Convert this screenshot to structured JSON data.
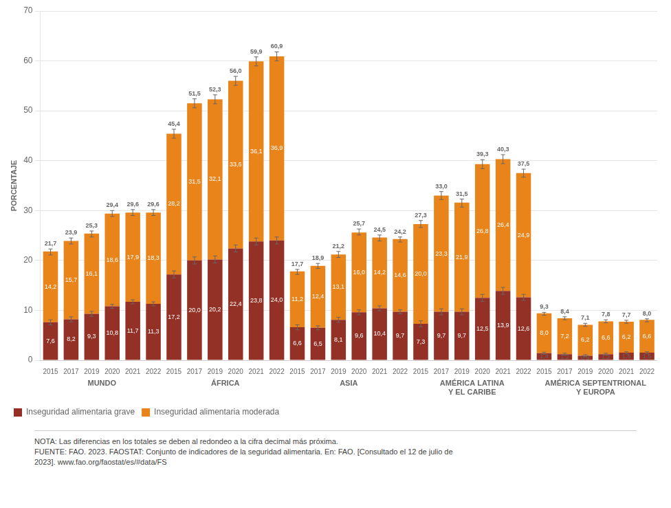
{
  "chart_data": {
    "type": "bar",
    "stacked": true,
    "categories": [
      "2015",
      "2017",
      "2019",
      "2020",
      "2021",
      "2022",
      "2015",
      "2017",
      "2019",
      "2020",
      "2021",
      "2022",
      "2015",
      "2017",
      "2019",
      "2020",
      "2021",
      "2022",
      "2015",
      "2017",
      "2019",
      "2020",
      "2021",
      "2022",
      "2015",
      "2017",
      "2019",
      "2020",
      "2021",
      "2022"
    ],
    "groups": [
      {
        "name": "MUNDO",
        "size": 6
      },
      {
        "name": "ÁFRICA",
        "size": 6
      },
      {
        "name": "ASIA",
        "size": 6
      },
      {
        "name": "AMÉRICA LATINA\nY EL CARIBE",
        "size": 6
      },
      {
        "name": "AMÉRICA SEPTENTRIONAL\nY EUROPA",
        "size": 6
      }
    ],
    "series": [
      {
        "name": "Inseguridad alimentaria grave",
        "color": "#943126",
        "values": [
          7.6,
          8.2,
          9.3,
          10.8,
          11.7,
          11.3,
          17.2,
          20.0,
          20.2,
          22.4,
          23.8,
          24.0,
          6.6,
          6.5,
          8.1,
          9.6,
          10.4,
          9.7,
          7.3,
          9.7,
          9.7,
          12.5,
          13.9,
          12.6,
          1.4,
          1.2,
          0.9,
          1.2,
          1.5,
          1.5
        ],
        "value_labels": [
          "7,6",
          "8,2",
          "9,3",
          "10,8",
          "11,7",
          "11,3",
          "17,2",
          "20,0",
          "20,2",
          "22,4",
          "23,8",
          "24,0",
          "6,6",
          "6,5",
          "8,1",
          "9,6",
          "10,4",
          "9,7",
          "7,3",
          "9,7",
          "9,7",
          "12,5",
          "13,9",
          "12,6",
          "1,4",
          "1,2",
          "0,9",
          "1,2",
          "1,5",
          "1,5"
        ],
        "errors": [
          0.5,
          0.5,
          0.5,
          0.4,
          0.4,
          0.4,
          0.7,
          0.7,
          0.7,
          0.7,
          0.7,
          0.7,
          0.5,
          0.4,
          0.5,
          0.5,
          0.5,
          0.4,
          0.6,
          0.6,
          0.6,
          0.7,
          0.7,
          0.6,
          0.2,
          0.2,
          0.2,
          0.2,
          0.2,
          0.2
        ]
      },
      {
        "name": "Inseguridad alimentaria moderada",
        "color": "#E8841A",
        "values": [
          14.2,
          15.7,
          16.1,
          18.6,
          17.9,
          18.3,
          28.2,
          31.5,
          32.1,
          33.6,
          36.1,
          36.9,
          11.2,
          12.4,
          13.1,
          16.0,
          14.2,
          14.6,
          20.0,
          23.3,
          21.9,
          26.8,
          26.4,
          24.9,
          8.0,
          7.2,
          6.2,
          6.6,
          6.2,
          6.6
        ],
        "value_labels": [
          "14,2",
          "15,7",
          "16,1",
          "18,6",
          "17,9",
          "18,3",
          "28,2",
          "31,5",
          "32,1",
          "33,6",
          "36,1",
          "36,9",
          "11,2",
          "12,4",
          "13,1",
          "16,0",
          "14,2",
          "14,6",
          "20,0",
          "23,3",
          "21,9",
          "26,8",
          "26,4",
          "24,9",
          "8,0",
          "7,2",
          "6,2",
          "6,6",
          "6,2",
          "6,6"
        ]
      }
    ],
    "totals": {
      "values": [
        21.7,
        23.9,
        25.3,
        29.4,
        29.6,
        29.6,
        45.4,
        51.5,
        52.3,
        56.0,
        59.9,
        60.9,
        17.7,
        18.9,
        21.2,
        25.7,
        24.5,
        24.2,
        27.3,
        33.0,
        31.5,
        39.3,
        40.3,
        37.5,
        9.3,
        8.4,
        7.1,
        7.8,
        7.7,
        8.0
      ],
      "value_labels": [
        "21,7",
        "23,9",
        "25,3",
        "29,4",
        "29,6",
        "29,6",
        "45,4",
        "51,5",
        "52,3",
        "56,0",
        "59,9",
        "60,9",
        "17,7",
        "18,9",
        "21,2",
        "25,7",
        "24,5",
        "24,2",
        "27,3",
        "33,0",
        "31,5",
        "39,3",
        "40,3",
        "37,5",
        "9,3",
        "8,4",
        "7,1",
        "7,8",
        "7,7",
        "8,0"
      ],
      "errors": [
        0.6,
        0.6,
        0.6,
        0.6,
        0.6,
        0.6,
        0.9,
        0.9,
        0.9,
        0.9,
        0.9,
        0.9,
        0.5,
        0.5,
        0.6,
        0.6,
        0.6,
        0.5,
        0.7,
        0.8,
        0.8,
        0.9,
        0.9,
        0.8,
        0.3,
        0.3,
        0.3,
        0.3,
        0.3,
        0.3
      ]
    },
    "ylabel": "PORCENTAJE",
    "ylim": [
      0,
      70
    ],
    "yticks": [
      0,
      10,
      20,
      30,
      40,
      50,
      60,
      70
    ],
    "grid": true,
    "legend": "bottom",
    "data_labels": true,
    "notes": [
      "NOTA: Las diferencias en los totales se deben al redondeo a la cifra decimal más próxima.",
      "FUENTE: FAO. 2023. FAOSTAT: Conjunto de indicadores de la seguridad alimentaria. En: FAO. [Consultado el 12 de julio de",
      "2023]. www.fao.org/faostat/es/#data/FS"
    ]
  }
}
